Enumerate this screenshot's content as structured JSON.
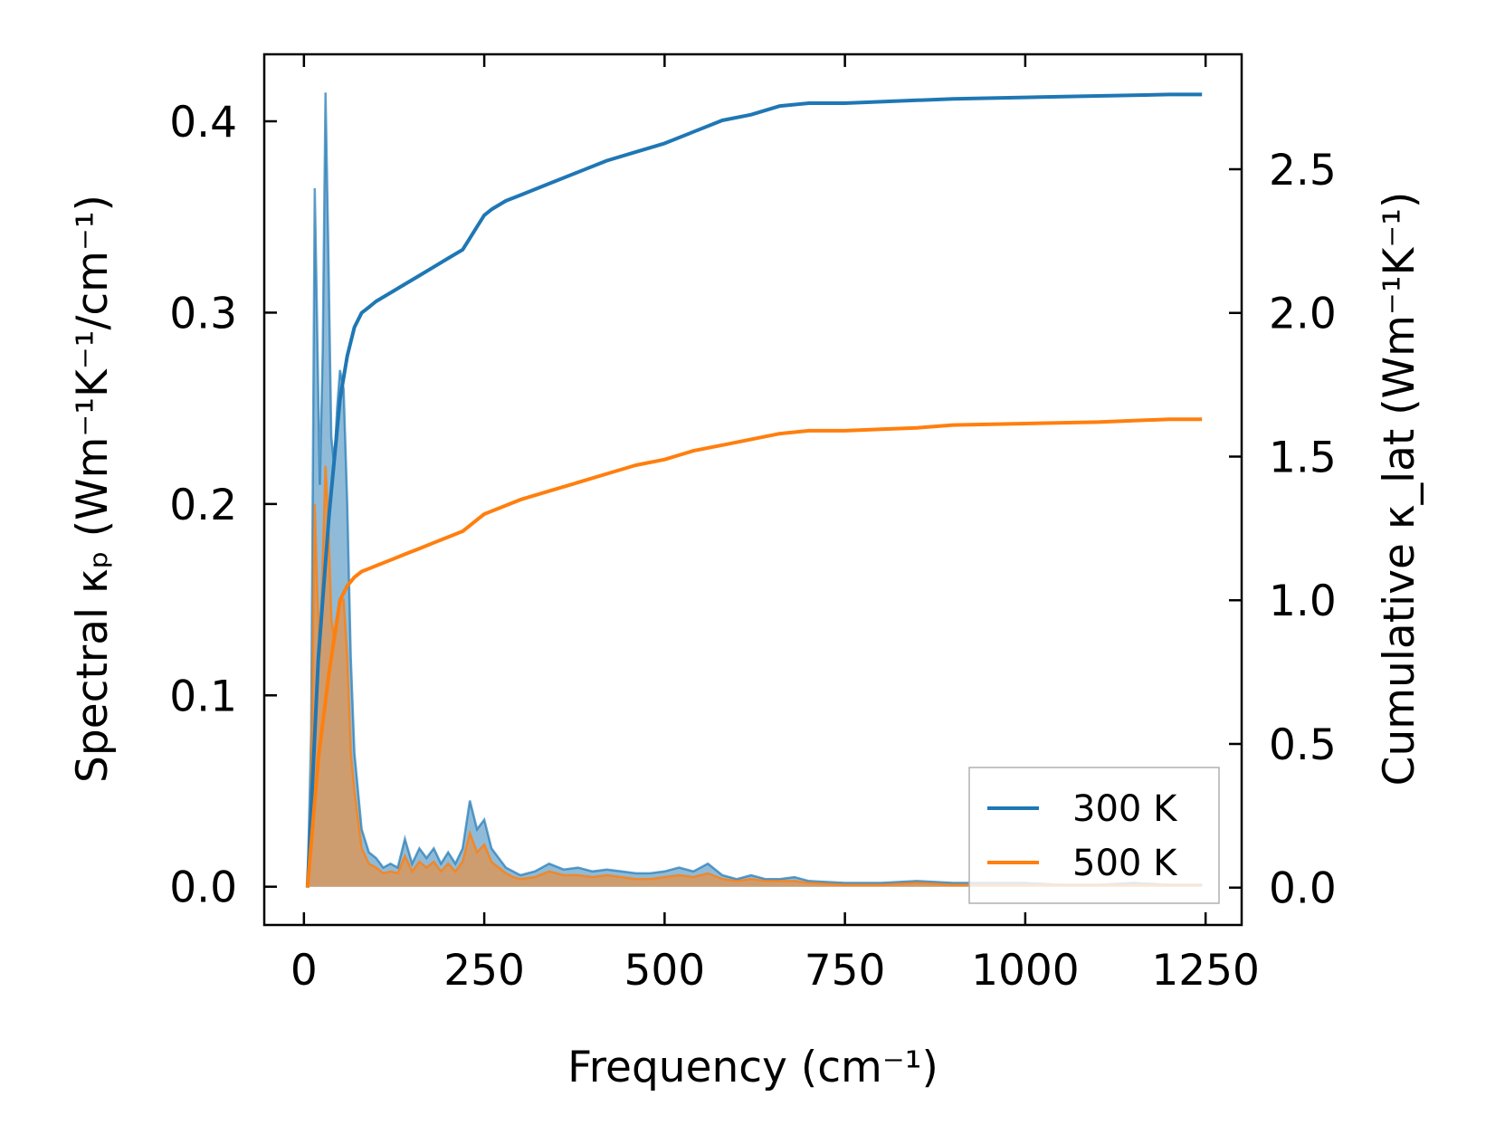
{
  "chart_data": {
    "type": "line",
    "xlabel": "Frequency (cm⁻¹)",
    "ylabel_left": "Spectral κₚ (Wm⁻¹K⁻¹/cm⁻¹)",
    "ylabel_right": "Cumulative κ_lat (Wm⁻¹K⁻¹)",
    "xlim": [
      -55,
      1300
    ],
    "ylim_left": [
      -0.02,
      0.435
    ],
    "ylim_right": [
      -0.13,
      2.9
    ],
    "x_ticks": [
      0,
      250,
      500,
      750,
      1000,
      1250
    ],
    "x_tick_labels": [
      "0",
      "250",
      "500",
      "750",
      "1000",
      "1250"
    ],
    "y_left_ticks": [
      0.0,
      0.1,
      0.2,
      0.3,
      0.4
    ],
    "y_left_tick_labels": [
      "0.0",
      "0.1",
      "0.2",
      "0.3",
      "0.4"
    ],
    "y_right_ticks": [
      0.0,
      0.5,
      1.0,
      1.5,
      2.0,
      2.5
    ],
    "y_right_tick_labels": [
      "0.0",
      "0.5",
      "1.0",
      "1.5",
      "2.0",
      "2.5"
    ],
    "legend": {
      "position": "lower-right",
      "entries": [
        "300 K",
        "500 K"
      ]
    },
    "grid": false,
    "colors": {
      "300K": "#1f77b4",
      "500K": "#ff7f0e",
      "fill_300K": "#1f77b4",
      "fill_500K": "#d9985c"
    },
    "spectral": {
      "300K": {
        "x": [
          5,
          10,
          15,
          18,
          22,
          26,
          30,
          34,
          38,
          42,
          46,
          50,
          55,
          60,
          65,
          70,
          80,
          90,
          100,
          110,
          120,
          130,
          140,
          150,
          160,
          170,
          180,
          190,
          200,
          210,
          220,
          230,
          240,
          250,
          260,
          270,
          280,
          290,
          300,
          320,
          340,
          360,
          380,
          400,
          420,
          440,
          460,
          480,
          500,
          520,
          540,
          560,
          580,
          600,
          620,
          640,
          660,
          680,
          700,
          750,
          800,
          850,
          900,
          950,
          1000,
          1050,
          1100,
          1150,
          1200,
          1245
        ],
        "y": [
          0.0,
          0.08,
          0.365,
          0.3,
          0.21,
          0.28,
          0.415,
          0.33,
          0.235,
          0.22,
          0.25,
          0.27,
          0.26,
          0.2,
          0.12,
          0.07,
          0.03,
          0.018,
          0.015,
          0.01,
          0.012,
          0.01,
          0.025,
          0.012,
          0.02,
          0.015,
          0.02,
          0.012,
          0.018,
          0.012,
          0.02,
          0.045,
          0.03,
          0.035,
          0.02,
          0.015,
          0.01,
          0.008,
          0.006,
          0.008,
          0.012,
          0.009,
          0.01,
          0.008,
          0.009,
          0.008,
          0.007,
          0.007,
          0.008,
          0.01,
          0.008,
          0.012,
          0.006,
          0.004,
          0.006,
          0.004,
          0.004,
          0.005,
          0.003,
          0.002,
          0.002,
          0.003,
          0.002,
          0.002,
          0.002,
          0.001,
          0.001,
          0.002,
          0.001,
          0.001
        ]
      },
      "500K": {
        "x": [
          5,
          10,
          15,
          18,
          22,
          26,
          30,
          34,
          38,
          42,
          46,
          50,
          55,
          60,
          65,
          70,
          80,
          90,
          100,
          110,
          120,
          130,
          140,
          150,
          160,
          170,
          180,
          190,
          200,
          210,
          220,
          230,
          240,
          250,
          260,
          270,
          280,
          290,
          300,
          320,
          340,
          360,
          380,
          400,
          420,
          440,
          460,
          480,
          500,
          520,
          540,
          560,
          580,
          600,
          620,
          640,
          660,
          680,
          700,
          750,
          800,
          850,
          900,
          950,
          1000,
          1050,
          1100,
          1150,
          1200,
          1245
        ],
        "y": [
          0.0,
          0.05,
          0.2,
          0.16,
          0.12,
          0.17,
          0.22,
          0.19,
          0.14,
          0.13,
          0.14,
          0.15,
          0.15,
          0.12,
          0.07,
          0.05,
          0.02,
          0.012,
          0.01,
          0.007,
          0.008,
          0.007,
          0.016,
          0.008,
          0.013,
          0.01,
          0.013,
          0.008,
          0.012,
          0.008,
          0.013,
          0.028,
          0.018,
          0.022,
          0.013,
          0.01,
          0.007,
          0.005,
          0.004,
          0.005,
          0.008,
          0.006,
          0.006,
          0.005,
          0.006,
          0.005,
          0.004,
          0.004,
          0.005,
          0.006,
          0.005,
          0.007,
          0.004,
          0.003,
          0.004,
          0.003,
          0.003,
          0.003,
          0.002,
          0.001,
          0.001,
          0.002,
          0.001,
          0.001,
          0.001,
          0.001,
          0.001,
          0.001,
          0.001,
          0.001
        ]
      }
    },
    "cumulative": {
      "300K": {
        "x": [
          5,
          20,
          35,
          50,
          60,
          70,
          80,
          90,
          100,
          120,
          140,
          160,
          180,
          200,
          220,
          230,
          240,
          250,
          260,
          280,
          300,
          340,
          380,
          420,
          460,
          500,
          540,
          580,
          620,
          660,
          700,
          750,
          800,
          850,
          900,
          1000,
          1100,
          1200,
          1245
        ],
        "y": [
          0.0,
          0.8,
          1.3,
          1.7,
          1.85,
          1.95,
          2.0,
          2.02,
          2.04,
          2.07,
          2.1,
          2.13,
          2.16,
          2.19,
          2.22,
          2.26,
          2.3,
          2.34,
          2.36,
          2.39,
          2.41,
          2.45,
          2.49,
          2.53,
          2.56,
          2.59,
          2.63,
          2.67,
          2.69,
          2.72,
          2.73,
          2.73,
          2.735,
          2.74,
          2.745,
          2.75,
          2.755,
          2.76,
          2.76
        ]
      },
      "500K": {
        "x": [
          5,
          20,
          35,
          50,
          60,
          70,
          80,
          90,
          100,
          120,
          140,
          160,
          180,
          200,
          220,
          230,
          240,
          250,
          260,
          280,
          300,
          340,
          380,
          420,
          460,
          500,
          540,
          580,
          620,
          660,
          700,
          750,
          800,
          850,
          900,
          1000,
          1100,
          1200,
          1245
        ],
        "y": [
          0.0,
          0.45,
          0.75,
          1.0,
          1.05,
          1.08,
          1.1,
          1.11,
          1.12,
          1.14,
          1.16,
          1.18,
          1.2,
          1.22,
          1.24,
          1.26,
          1.28,
          1.3,
          1.31,
          1.33,
          1.35,
          1.38,
          1.41,
          1.44,
          1.47,
          1.49,
          1.52,
          1.54,
          1.56,
          1.58,
          1.59,
          1.59,
          1.595,
          1.6,
          1.61,
          1.615,
          1.62,
          1.63,
          1.63
        ]
      }
    }
  }
}
